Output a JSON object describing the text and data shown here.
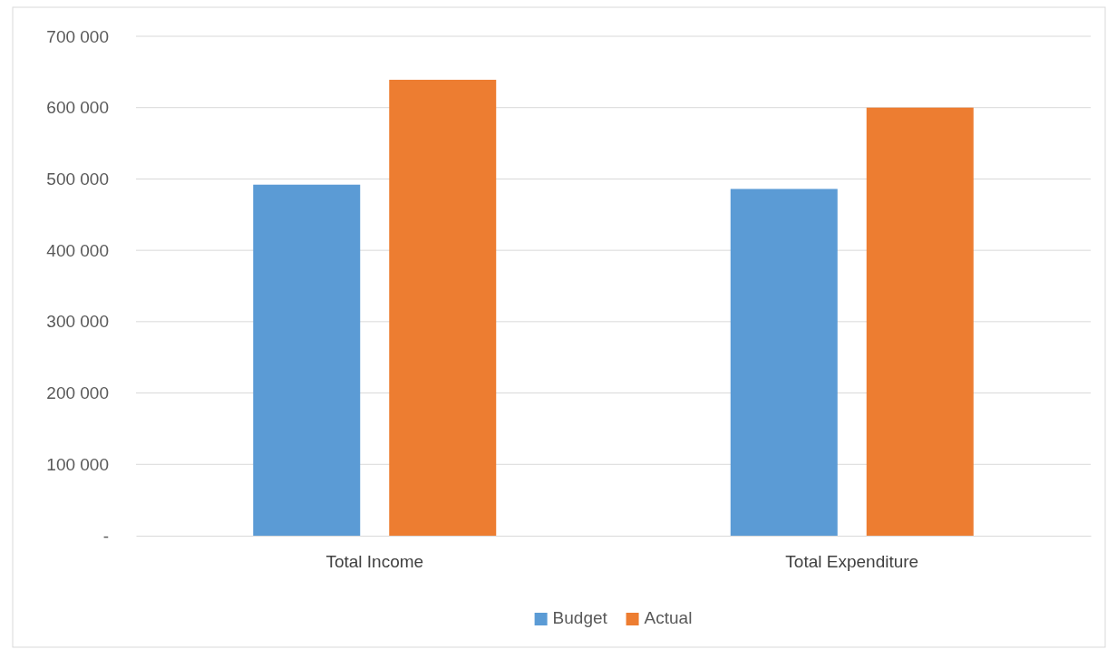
{
  "chart_data": {
    "type": "bar",
    "categories": [
      "Total Income",
      "Total Expenditure"
    ],
    "series": [
      {
        "name": "Budget",
        "color": "#5b9bd5",
        "values": [
          492000,
          486000
        ]
      },
      {
        "name": "Actual",
        "color": "#ed7d31",
        "values": [
          639000,
          600000
        ]
      }
    ],
    "ylim": [
      0,
      700000
    ],
    "yticks": [
      {
        "value": 0,
        "label": "-"
      },
      100000,
      200000,
      300000,
      400000,
      500000,
      600000,
      700000
    ],
    "grid": "y",
    "legend": "bottom"
  }
}
